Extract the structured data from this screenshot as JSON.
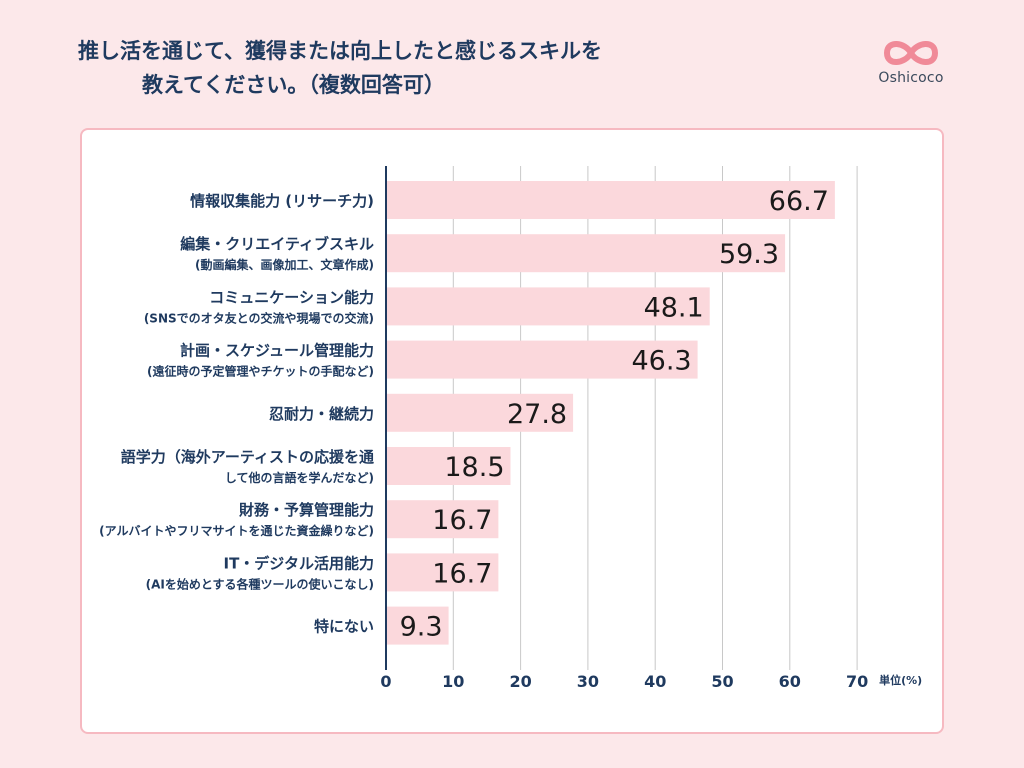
{
  "header": {
    "title_line1": "推し活を通じて、獲得または向上したと感じるスキルを",
    "title_line2": "教えてください。（複数回答可）",
    "logo_text": "Oshicoco",
    "logo_color": "#f08a98"
  },
  "chart_data": {
    "type": "bar",
    "orientation": "horizontal",
    "title": "推し活を通じて、獲得または向上したと感じるスキルを教えてください。（複数回答可）",
    "categories": [
      {
        "main": "情報収集能力 (リサーチ力)",
        "sub": ""
      },
      {
        "main": "編集・クリエイティブスキル",
        "sub": "(動画編集、画像加工、文章作成)"
      },
      {
        "main": "コミュニケーション能力",
        "sub": "(SNSでのオタ友との交流や現場での交流)"
      },
      {
        "main": "計画・スケジュール管理能力",
        "sub": "(遠征時の予定管理やチケットの手配など)"
      },
      {
        "main": "忍耐力・継続力",
        "sub": ""
      },
      {
        "main": "語学力（海外アーティストの応援を通",
        "sub": "して他の言語を学んだなど)"
      },
      {
        "main": "財務・予算管理能力",
        "sub": "(アルバイトやフリマサイトを通じた資金繰りなど)"
      },
      {
        "main": "IT・デジタル活用能力",
        "sub": "(AIを始めとする各種ツールの使いこなし)"
      },
      {
        "main": "特にない",
        "sub": ""
      }
    ],
    "values": [
      66.7,
      59.3,
      48.1,
      46.3,
      27.8,
      18.5,
      16.7,
      16.7,
      9.3
    ],
    "value_labels": [
      "66.7",
      "59.3",
      "48.1",
      "46.3",
      "27.8",
      "18.5",
      "16.7",
      "16.7",
      "9.3"
    ],
    "xlim": [
      0,
      70
    ],
    "xticks": [
      "0",
      "10",
      "20",
      "30",
      "40",
      "50",
      "60",
      "70"
    ],
    "xtick_values": [
      0,
      10,
      20,
      30,
      40,
      50,
      60,
      70
    ],
    "unit_label": "単位(%)",
    "grid": true,
    "bar_color": "#fbd8dc",
    "axis_color": "#1f3a5f",
    "grid_color": "#c8c8c8"
  }
}
